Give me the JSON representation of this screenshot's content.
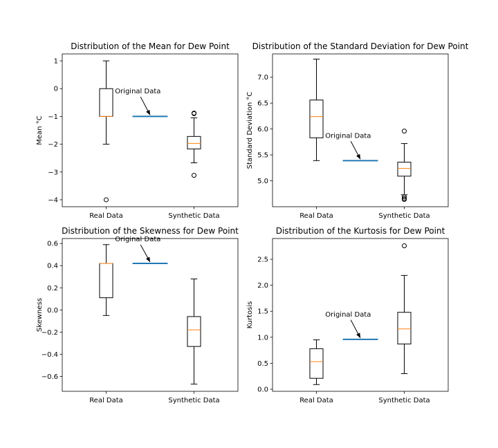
{
  "colors": {
    "median": "#ff7f0e",
    "reference_line": "#1f77b4",
    "box": "#000000",
    "background": "#ffffff"
  },
  "chart_data": [
    {
      "type": "box",
      "title": "Distribution of the Mean for Dew Point",
      "ylabel": "Mean $^\\circ$C",
      "ylabel_text": "Mean °C",
      "xlabel": "",
      "categories": [
        "Real Data",
        "Synthetic Data"
      ],
      "ylim": [
        -4.25,
        1.25
      ],
      "yticks": [
        1,
        0,
        -1,
        -2,
        -3,
        -4
      ],
      "ytick_labels": [
        "1",
        "0",
        "−1",
        "−2",
        "−3",
        "−4"
      ],
      "boxes": [
        {
          "name": "Real Data",
          "whisker_low": -2.0,
          "q1": -1.0,
          "median": -1.0,
          "q3": 0.0,
          "whisker_high": 1.0,
          "outliers": [
            -4.0
          ]
        },
        {
          "name": "Synthetic Data",
          "whisker_low": -2.67,
          "q1": -2.17,
          "median": -1.97,
          "q3": -1.72,
          "whisker_high": -1.05,
          "outliers": [
            -0.88,
            -0.9,
            -3.12
          ]
        }
      ],
      "reference": {
        "label": "Original Data",
        "value": -1.0,
        "label_value": -0.17
      }
    },
    {
      "type": "box",
      "title": "Distribution of the Standard Deviation for Dew Point",
      "ylabel": "Standard Deviation $^\\circ$C",
      "ylabel_text": "Standard Deviation °C",
      "xlabel": "",
      "categories": [
        "Real Data",
        "Synthetic Data"
      ],
      "ylim": [
        4.5,
        7.45
      ],
      "yticks": [
        7.0,
        6.5,
        6.0,
        5.5,
        5.0
      ],
      "ytick_labels": [
        "7.0",
        "6.5",
        "6.0",
        "5.5",
        "5.0"
      ],
      "boxes": [
        {
          "name": "Real Data",
          "whisker_low": 5.39,
          "q1": 5.83,
          "median": 6.24,
          "q3": 6.56,
          "whisker_high": 7.35,
          "outliers": []
        },
        {
          "name": "Synthetic Data",
          "whisker_low": 4.73,
          "q1": 5.09,
          "median": 5.24,
          "q3": 5.36,
          "whisker_high": 5.72,
          "outliers": [
            5.96,
            4.69,
            4.66,
            4.64
          ]
        }
      ],
      "reference": {
        "label": "Original Data",
        "value": 5.39,
        "label_value": 5.83
      }
    },
    {
      "type": "box",
      "title": "Distribution of the Skewness for Dew Point",
      "ylabel": "Skewness",
      "ylabel_text": "Skewness",
      "xlabel": "",
      "categories": [
        "Real Data",
        "Synthetic Data"
      ],
      "ylim": [
        -0.735,
        0.645
      ],
      "yticks": [
        0.6,
        0.4,
        0.2,
        0.0,
        -0.2,
        -0.4,
        -0.6
      ],
      "ytick_labels": [
        "0.6",
        "0.4",
        "0.2",
        "0.0",
        "−0.2",
        "−0.4",
        "−0.6"
      ],
      "boxes": [
        {
          "name": "Real Data",
          "whisker_low": -0.05,
          "q1": 0.11,
          "median": 0.42,
          "q3": 0.42,
          "whisker_high": 0.59,
          "outliers": []
        },
        {
          "name": "Synthetic Data",
          "whisker_low": -0.67,
          "q1": -0.33,
          "median": -0.18,
          "q3": -0.06,
          "whisker_high": 0.28,
          "outliers": []
        }
      ],
      "reference": {
        "label": "Original Data",
        "value": 0.42,
        "label_value": 0.62
      }
    },
    {
      "type": "box",
      "title": "Distribution of the Kurtosis for Dew Point",
      "ylabel": "Kurtosis",
      "ylabel_text": "Kurtosis",
      "xlabel": "",
      "categories": [
        "Real Data",
        "Synthetic Data"
      ],
      "ylim": [
        -0.04,
        2.9
      ],
      "yticks": [
        2.5,
        2.0,
        1.5,
        1.0,
        0.5,
        0.0
      ],
      "ytick_labels": [
        "2.5",
        "2.0",
        "1.5",
        "1.0",
        "0.5",
        "0.0"
      ],
      "boxes": [
        {
          "name": "Real Data",
          "whisker_low": 0.09,
          "q1": 0.21,
          "median": 0.53,
          "q3": 0.78,
          "whisker_high": 0.95,
          "outliers": []
        },
        {
          "name": "Synthetic Data",
          "whisker_low": 0.3,
          "q1": 0.87,
          "median": 1.16,
          "q3": 1.48,
          "whisker_high": 2.19,
          "outliers": [
            2.76
          ]
        }
      ],
      "reference": {
        "label": "Original Data",
        "value": 0.96,
        "label_value": 1.4
      }
    }
  ]
}
